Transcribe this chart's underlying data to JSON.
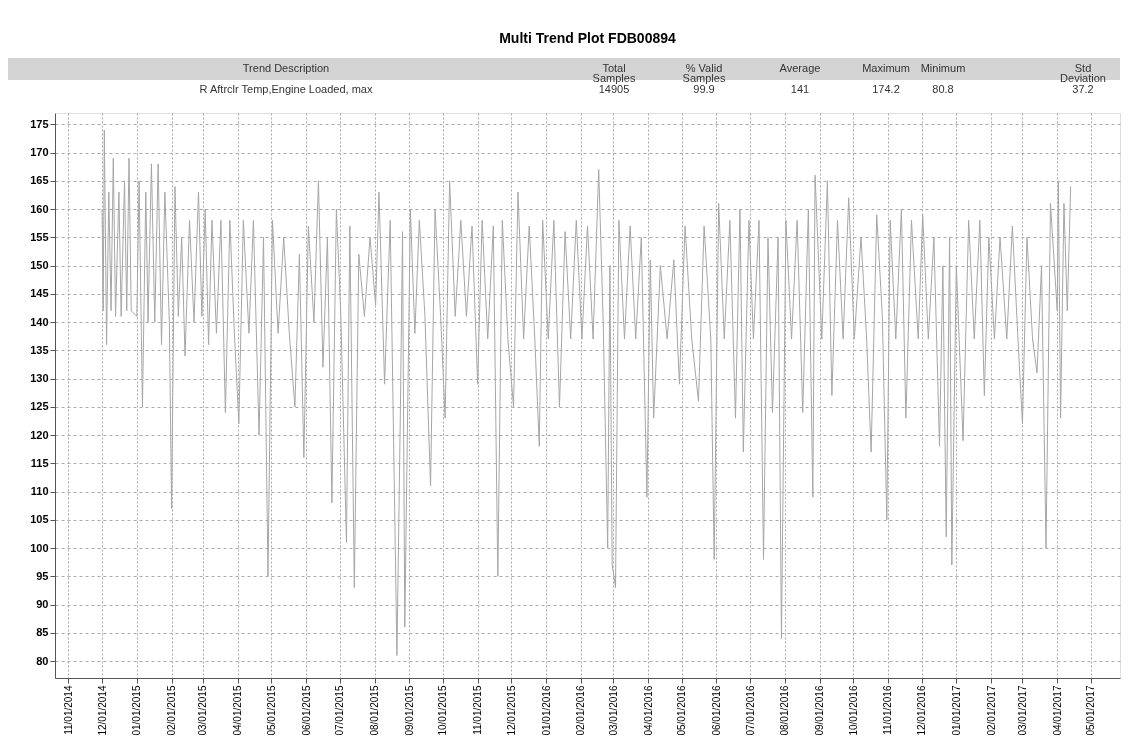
{
  "chart_data": {
    "type": "line",
    "title": "Multi Trend Plot FDB00894",
    "annotations": [
      "Trend Description",
      "Total\nSamples",
      "% Valid\nSamples",
      "Average",
      "Maximum",
      "Minimum",
      "Std\nDeviation",
      "R Aftrclr Temp,Engine Loaded, max",
      "14905",
      "99.9",
      "141",
      "174.2",
      "80.8",
      "37.2"
    ],
    "x": [
      "2014-12-01",
      "2014-12-02",
      "2014-12-03",
      "2014-12-05",
      "2014-12-07",
      "2014-12-09",
      "2014-12-11",
      "2014-12-13",
      "2014-12-16",
      "2014-12-18",
      "2014-12-21",
      "2014-12-23",
      "2014-12-25",
      "2014-12-27",
      "2015-01-01",
      "2015-01-03",
      "2015-01-06",
      "2015-01-09",
      "2015-01-11",
      "2015-01-14",
      "2015-01-17",
      "2015-01-20",
      "2015-01-23",
      "2015-01-26",
      "2015-01-30",
      "2015-02-01",
      "2015-02-04",
      "2015-02-07",
      "2015-02-10",
      "2015-02-13",
      "2015-02-17",
      "2015-02-21",
      "2015-02-25",
      "2015-02-28",
      "2015-03-03",
      "2015-03-06",
      "2015-03-09",
      "2015-03-13",
      "2015-03-17",
      "2015-03-21",
      "2015-03-25",
      "2015-03-29",
      "2015-04-02",
      "2015-04-06",
      "2015-04-11",
      "2015-04-15",
      "2015-04-20",
      "2015-04-24",
      "2015-04-28",
      "2015-05-02",
      "2015-05-07",
      "2015-05-12",
      "2015-05-17",
      "2015-05-22",
      "2015-05-26",
      "2015-05-30",
      "2015-06-03",
      "2015-06-08",
      "2015-06-12",
      "2015-06-16",
      "2015-06-20",
      "2015-06-24",
      "2015-06-28",
      "2015-07-02",
      "2015-07-07",
      "2015-07-10",
      "2015-07-14",
      "2015-07-18",
      "2015-07-23",
      "2015-07-28",
      "2015-08-02",
      "2015-08-05",
      "2015-08-10",
      "2015-08-15",
      "2015-08-21",
      "2015-08-24",
      "2015-08-26",
      "2015-08-28",
      "2015-09-02",
      "2015-09-06",
      "2015-09-10",
      "2015-09-15",
      "2015-09-20",
      "2015-09-24",
      "2015-09-29",
      "2015-10-03",
      "2015-10-07",
      "2015-10-12",
      "2015-10-17",
      "2015-10-22",
      "2015-10-27",
      "2015-11-01",
      "2015-11-05",
      "2015-11-10",
      "2015-11-15",
      "2015-11-19",
      "2015-11-23",
      "2015-11-28",
      "2015-12-03",
      "2015-12-07",
      "2015-12-12",
      "2015-12-17",
      "2015-12-22",
      "2015-12-26",
      "2015-12-29",
      "2016-01-03",
      "2016-01-08",
      "2016-01-13",
      "2016-01-18",
      "2016-01-23",
      "2016-01-28",
      "2016-02-02",
      "2016-02-07",
      "2016-02-12",
      "2016-02-17",
      "2016-02-21",
      "2016-02-25",
      "2016-02-27",
      "2016-02-29",
      "2016-03-03",
      "2016-03-06",
      "2016-03-11",
      "2016-03-16",
      "2016-03-21",
      "2016-03-26",
      "2016-03-31",
      "2016-04-03",
      "2016-04-06",
      "2016-04-12",
      "2016-04-18",
      "2016-04-24",
      "2016-04-29",
      "2016-05-04",
      "2016-05-10",
      "2016-05-16",
      "2016-05-21",
      "2016-05-27",
      "2016-05-30",
      "2016-06-03",
      "2016-06-08",
      "2016-06-13",
      "2016-06-18",
      "2016-06-22",
      "2016-06-25",
      "2016-06-30",
      "2016-07-04",
      "2016-07-09",
      "2016-07-13",
      "2016-07-17",
      "2016-07-21",
      "2016-07-26",
      "2016-07-29",
      "2016-08-02",
      "2016-08-07",
      "2016-08-12",
      "2016-08-17",
      "2016-08-22",
      "2016-08-26",
      "2016-08-28",
      "2016-09-03",
      "2016-09-08",
      "2016-09-12",
      "2016-09-17",
      "2016-09-22",
      "2016-09-27",
      "2016-10-02",
      "2016-10-08",
      "2016-10-13",
      "2016-10-17",
      "2016-10-22",
      "2016-10-27",
      "2016-10-31",
      "2016-11-03",
      "2016-11-08",
      "2016-11-13",
      "2016-11-17",
      "2016-11-22",
      "2016-11-28",
      "2016-12-02",
      "2016-12-07",
      "2016-12-12",
      "2016-12-17",
      "2016-12-20",
      "2016-12-23",
      "2016-12-26",
      "2016-12-28",
      "2017-01-01",
      "2017-01-07",
      "2017-01-12",
      "2017-01-17",
      "2017-01-22",
      "2017-01-26",
      "2017-01-30",
      "2017-02-04",
      "2017-02-09",
      "2017-02-15",
      "2017-02-20",
      "2017-02-25",
      "2017-03-01",
      "2017-03-05",
      "2017-03-10",
      "2017-03-14",
      "2017-03-18",
      "2017-03-22",
      "2017-03-26",
      "2017-04-01",
      "2017-04-02",
      "2017-04-04",
      "2017-04-07",
      "2017-04-10",
      "2017-04-13"
    ],
    "series": [
      {
        "color": "#a6a6a6",
        "values": [
          160,
          142,
          174,
          136,
          163,
          142,
          169,
          141,
          163,
          141,
          165,
          142,
          169,
          142,
          141,
          165,
          125,
          163,
          140,
          168,
          140,
          168,
          136,
          163,
          140,
          107,
          164,
          141,
          155,
          134,
          158,
          140,
          163,
          141,
          160,
          136,
          158,
          138,
          158,
          124,
          158,
          138,
          122,
          158,
          138,
          158,
          120,
          155,
          95,
          158,
          138,
          155,
          138,
          125,
          152,
          116,
          157,
          140,
          165,
          132,
          155,
          108,
          160,
          141,
          101,
          157,
          93,
          152,
          141,
          155,
          143,
          163,
          129,
          158,
          81,
          123,
          156,
          86,
          160,
          138,
          158,
          141,
          111,
          160,
          141,
          123,
          165,
          141,
          158,
          141,
          157,
          129,
          158,
          137,
          157,
          95,
          158,
          137,
          125,
          163,
          137,
          157,
          137,
          118,
          158,
          137,
          158,
          125,
          156,
          137,
          158,
          137,
          157,
          137,
          167,
          140,
          100,
          150,
          97,
          93,
          158,
          137,
          157,
          137,
          155,
          109,
          151,
          123,
          150,
          137,
          151,
          129,
          157,
          137,
          126,
          157,
          137,
          98,
          161,
          137,
          158,
          123,
          160,
          117,
          158,
          137,
          158,
          98,
          155,
          124,
          155,
          84,
          158,
          137,
          158,
          124,
          160,
          109,
          166,
          137,
          165,
          127,
          158,
          137,
          162,
          137,
          155,
          137,
          117,
          159,
          141,
          105,
          158,
          137,
          160,
          123,
          158,
          137,
          159,
          137,
          155,
          118,
          150,
          102,
          155,
          97,
          150,
          119,
          158,
          137,
          158,
          127,
          155,
          137,
          155,
          137,
          157,
          137,
          122,
          155,
          137,
          131,
          150,
          100,
          161,
          142,
          165,
          123,
          161,
          142,
          164
        ]
      }
    ],
    "xlim": [
      "2014-10-20",
      "2017-05-27"
    ],
    "xticks": [
      {
        "value": "2014-11-01",
        "label": "11/01/2014"
      },
      {
        "value": "2014-12-01",
        "label": "12/01/2014"
      },
      {
        "value": "2015-01-01",
        "label": "01/01/2015"
      },
      {
        "value": "2015-02-01",
        "label": "02/01/2015"
      },
      {
        "value": "2015-03-01",
        "label": "03/01/2015"
      },
      {
        "value": "2015-04-01",
        "label": "04/01/2015"
      },
      {
        "value": "2015-05-01",
        "label": "05/01/2015"
      },
      {
        "value": "2015-06-01",
        "label": "06/01/2015"
      },
      {
        "value": "2015-07-01",
        "label": "07/01/2015"
      },
      {
        "value": "2015-08-01",
        "label": "08/01/2015"
      },
      {
        "value": "2015-09-01",
        "label": "09/01/2015"
      },
      {
        "value": "2015-10-01",
        "label": "10/01/2015"
      },
      {
        "value": "2015-11-01",
        "label": "11/01/2015"
      },
      {
        "value": "2015-12-01",
        "label": "12/01/2015"
      },
      {
        "value": "2016-01-01",
        "label": "01/01/2016"
      },
      {
        "value": "2016-02-01",
        "label": "02/01/2016"
      },
      {
        "value": "2016-03-01",
        "label": "03/01/2016"
      },
      {
        "value": "2016-04-01",
        "label": "04/01/2016"
      },
      {
        "value": "2016-05-01",
        "label": "05/01/2016"
      },
      {
        "value": "2016-06-01",
        "label": "06/01/2016"
      },
      {
        "value": "2016-07-01",
        "label": "07/01/2016"
      },
      {
        "value": "2016-08-01",
        "label": "08/01/2016"
      },
      {
        "value": "2016-09-01",
        "label": "09/01/2016"
      },
      {
        "value": "2016-10-01",
        "label": "10/01/2016"
      },
      {
        "value": "2016-11-01",
        "label": "11/01/2016"
      },
      {
        "value": "2016-12-01",
        "label": "12/01/2016"
      },
      {
        "value": "2017-01-01",
        "label": "01/01/2017"
      },
      {
        "value": "2017-02-01",
        "label": "02/01/2017"
      },
      {
        "value": "2017-03-01",
        "label": "03/01/2017"
      },
      {
        "value": "2017-04-01",
        "label": "04/01/2017"
      },
      {
        "value": "2017-05-01",
        "label": "05/01/2017"
      }
    ],
    "ylim": [
      77,
      177
    ],
    "yticks": [
      80,
      85,
      90,
      95,
      100,
      105,
      110,
      115,
      120,
      125,
      130,
      135,
      140,
      145,
      150,
      155,
      160,
      165,
      170,
      175
    ],
    "grid": true,
    "line_style": "solid",
    "marker": "none"
  }
}
